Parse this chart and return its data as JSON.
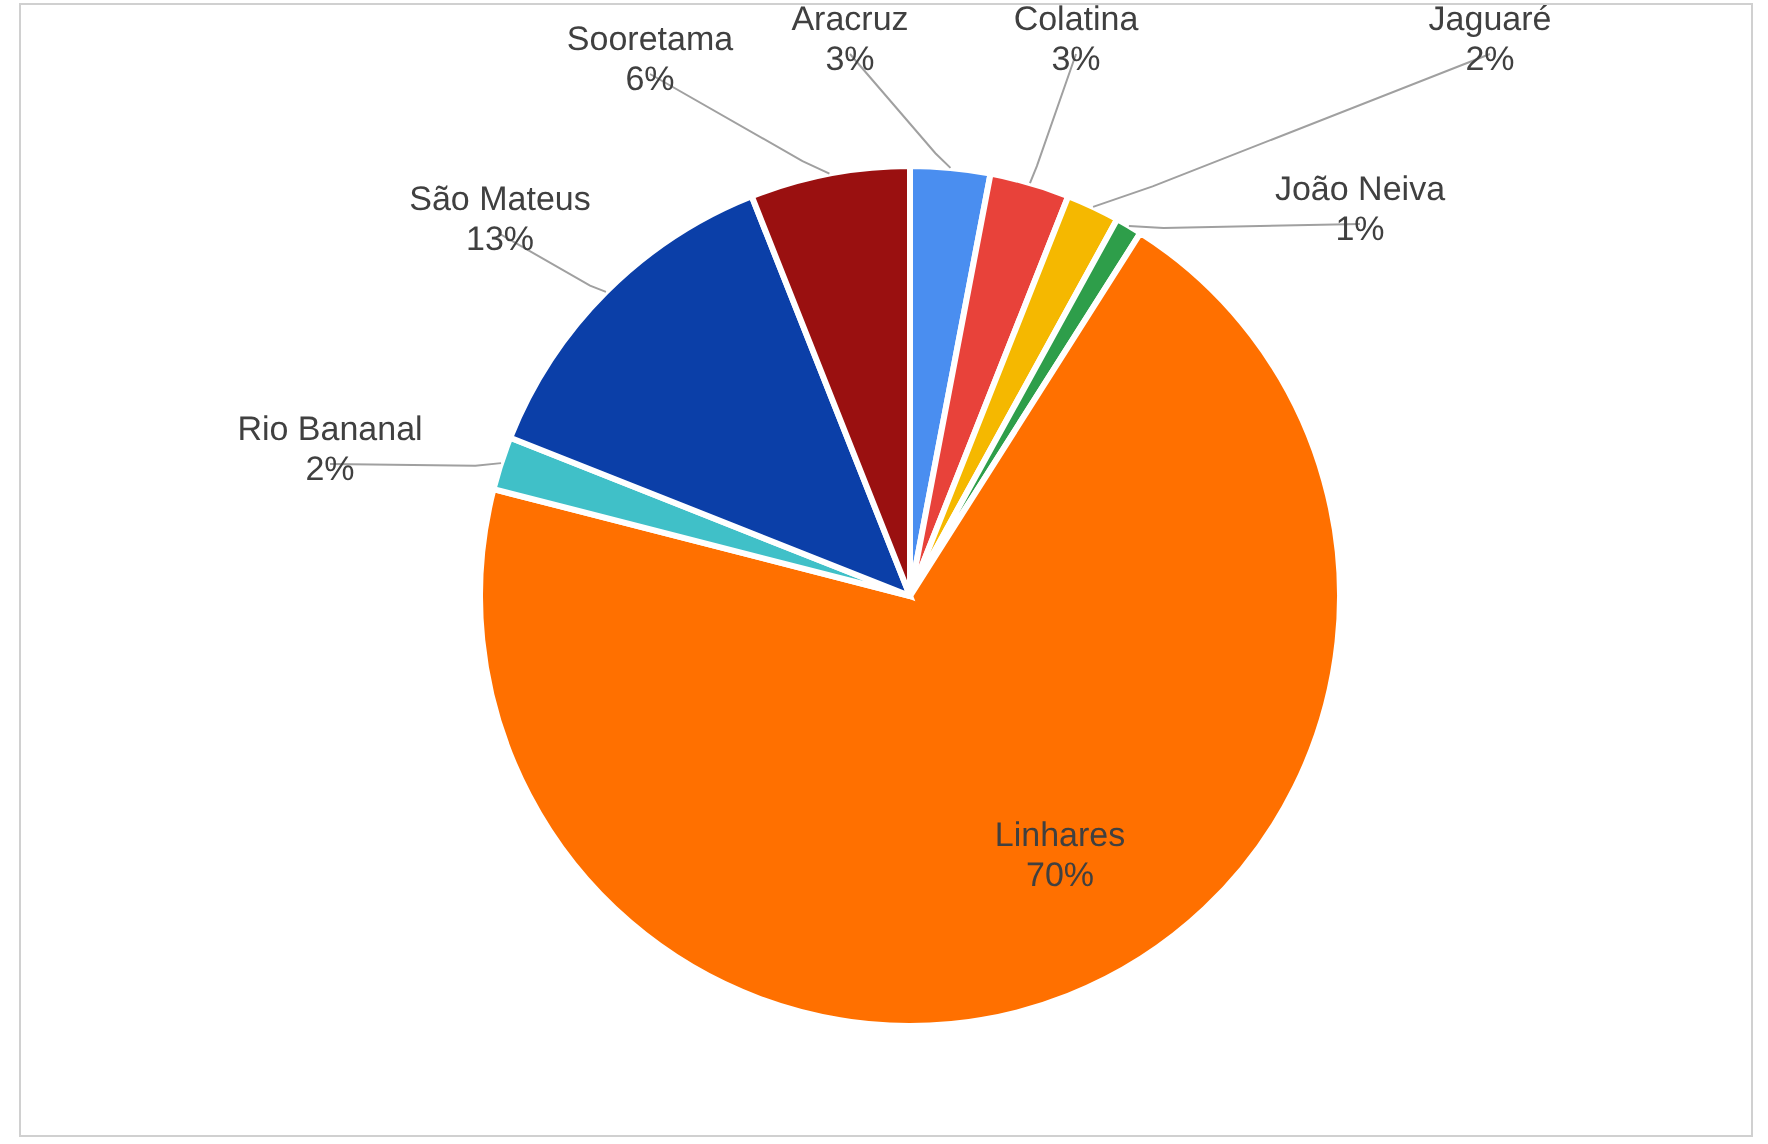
{
  "chart_data": {
    "type": "pie",
    "categories": [
      "Aracruz",
      "Colatina",
      "Jaguaré",
      "João Neiva",
      "Linhares",
      "Rio Bananal",
      "São Mateus",
      "Sooretama"
    ],
    "values": [
      3,
      3,
      2,
      1,
      70,
      2,
      13,
      6
    ],
    "colors": [
      "#4a8ef0",
      "#e8423a",
      "#f5b800",
      "#2e9e4a",
      "#ff7000",
      "#40c0c8",
      "#0b3fa8",
      "#9a1010"
    ],
    "value_labels": [
      "3%",
      "3%",
      "2%",
      "1%",
      "70%",
      "2%",
      "13%",
      "6%"
    ]
  }
}
